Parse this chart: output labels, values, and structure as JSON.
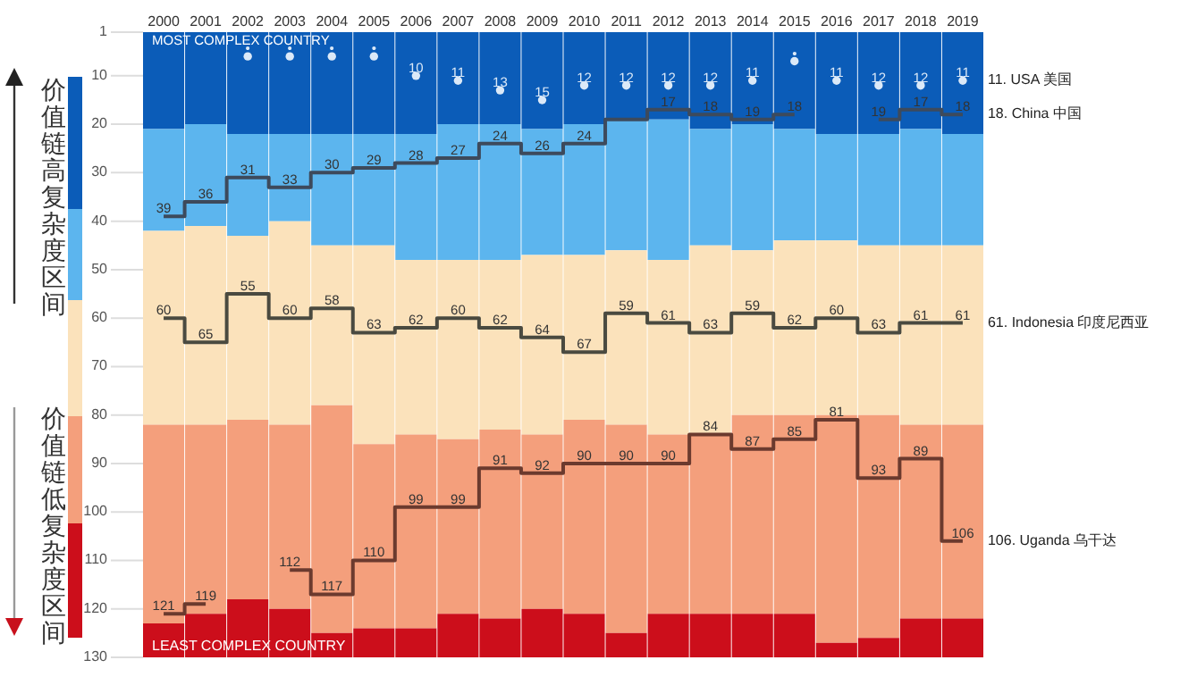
{
  "chart_data": {
    "type": "bar",
    "categories": [
      "2000",
      "2001",
      "2002",
      "2003",
      "2004",
      "2005",
      "2006",
      "2007",
      "2008",
      "2009",
      "2010",
      "2011",
      "2012",
      "2013",
      "2014",
      "2015",
      "2016",
      "2017",
      "2018",
      "2019"
    ],
    "ylim": [
      130,
      1
    ],
    "yticks": [
      1,
      10,
      20,
      30,
      40,
      50,
      60,
      70,
      80,
      90,
      100,
      110,
      120,
      130
    ],
    "annotations": [
      "MOST COMPLEX COUNTRY",
      "LEAST COMPLEX COUNTRY",
      "价值链高复杂度区间",
      "价值链低复杂度区间"
    ],
    "series": [
      {
        "type": "bar",
        "color": "#0b5cb8",
        "base": [
          1,
          1,
          1,
          1,
          1,
          1,
          1,
          1,
          1,
          1,
          1,
          1,
          1,
          1,
          1,
          1,
          1,
          1,
          1,
          1
        ],
        "values": [
          20,
          19,
          21,
          21,
          21,
          21,
          21,
          19,
          19,
          20,
          19,
          18,
          18,
          20,
          19,
          20,
          21,
          21,
          20,
          21
        ]
      },
      {
        "type": "bar",
        "color": "#5cb5ee",
        "base": [
          21,
          20,
          22,
          22,
          22,
          22,
          22,
          20,
          20,
          21,
          20,
          19,
          19,
          21,
          20,
          21,
          22,
          22,
          21,
          22
        ],
        "values": [
          21,
          21,
          21,
          18,
          23,
          23,
          26,
          28,
          28,
          26,
          27,
          27,
          29,
          24,
          26,
          23,
          22,
          23,
          24,
          23
        ]
      },
      {
        "type": "bar",
        "color": "#fbe2bb",
        "base": [
          42,
          41,
          43,
          40,
          45,
          45,
          48,
          48,
          48,
          47,
          47,
          46,
          48,
          45,
          46,
          44,
          44,
          45,
          45,
          45
        ],
        "values": [
          40,
          41,
          38,
          42,
          33,
          41,
          36,
          37,
          35,
          37,
          34,
          36,
          36,
          39,
          34,
          36,
          36,
          35,
          37,
          37
        ]
      },
      {
        "type": "bar",
        "color": "#f49f7c",
        "base": [
          82,
          82,
          81,
          82,
          78,
          86,
          84,
          85,
          83,
          84,
          81,
          82,
          84,
          84,
          80,
          80,
          80,
          80,
          82,
          82
        ],
        "values": [
          41,
          39,
          37,
          38,
          47,
          38,
          40,
          36,
          39,
          36,
          40,
          43,
          37,
          37,
          41,
          41,
          47,
          46,
          40,
          40
        ]
      },
      {
        "type": "bar",
        "color": "#cc0e1b",
        "base": [
          123,
          121,
          118,
          120,
          125,
          124,
          124,
          121,
          122,
          120,
          121,
          125,
          121,
          121,
          121,
          121,
          127,
          126,
          122,
          122
        ],
        "values": [
          7,
          9,
          12,
          10,
          5,
          6,
          6,
          9,
          8,
          10,
          9,
          5,
          9,
          9,
          9,
          9,
          3,
          4,
          8,
          8
        ]
      },
      {
        "type": "scatter",
        "marker": "circle",
        "name": "11. USA 美国",
        "color": "#dbe9f8",
        "values": [
          null,
          null,
          6,
          6,
          6,
          6,
          10,
          11,
          13,
          15,
          12,
          12,
          12,
          12,
          11,
          7,
          11,
          12,
          12,
          11
        ],
        "value_labels": [
          null,
          null,
          "•",
          "•",
          "•",
          "•",
          "10",
          "11",
          "13",
          "15",
          "12",
          "12",
          "12",
          "12",
          "11",
          "•",
          "11",
          "12",
          "12",
          "11"
        ]
      },
      {
        "type": "step",
        "name": "18. China 中国",
        "color": "#3d4a5c",
        "values": [
          39,
          36,
          31,
          33,
          30,
          29,
          28,
          27,
          24,
          26,
          24,
          19,
          17,
          18,
          19,
          18,
          null,
          19,
          17,
          18
        ],
        "value_labels": [
          "39",
          "36",
          "31",
          "33",
          "30",
          "29",
          "28",
          "27",
          "24",
          "26",
          "24",
          null,
          "17",
          "18",
          "19",
          "18",
          null,
          "19",
          "17",
          "18"
        ]
      },
      {
        "type": "step",
        "name": "61. Indonesia 印度尼西亚",
        "color": "#4a4a40",
        "values": [
          60,
          65,
          55,
          60,
          58,
          63,
          62,
          60,
          62,
          64,
          67,
          59,
          61,
          63,
          59,
          62,
          60,
          63,
          61,
          61
        ],
        "value_labels": [
          "60",
          "65",
          "55",
          "60",
          "58",
          "63",
          "62",
          "60",
          "62",
          "64",
          "67",
          "59",
          "61",
          "63",
          "59",
          "62",
          "60",
          "63",
          "61",
          "61"
        ]
      },
      {
        "type": "step",
        "name": "106. Uganda 乌干达",
        "color": "#6b3a2e",
        "values": [
          121,
          119,
          null,
          112,
          117,
          110,
          99,
          99,
          91,
          92,
          90,
          90,
          90,
          84,
          87,
          85,
          81,
          93,
          89,
          106
        ],
        "value_labels": [
          "121",
          "119",
          null,
          "112",
          "117",
          "110",
          "99",
          "99",
          "91",
          "92",
          "90",
          "90",
          "90",
          "84",
          "87",
          "85",
          "81",
          "93",
          "89",
          "106"
        ]
      }
    ]
  }
}
